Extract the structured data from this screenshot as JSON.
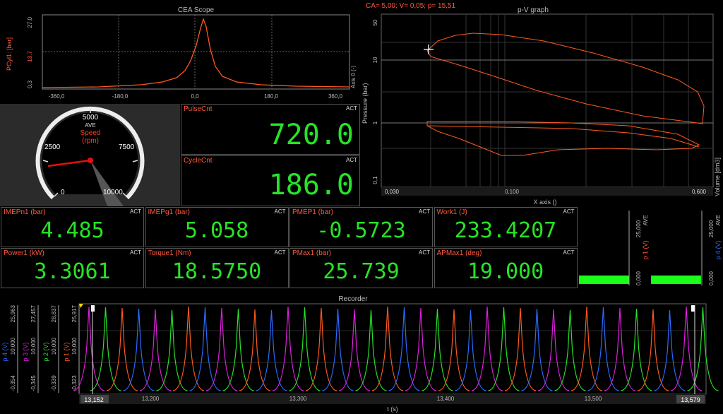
{
  "scope": {
    "title": "CEA Scope",
    "ylabel": "PCyl1: [bar]",
    "y_ticks": [
      "27,0",
      "13,7",
      "0,3"
    ],
    "x_ticks": [
      "-360,0",
      "-180,0",
      "0,0",
      "180,0",
      "360,0"
    ],
    "right_axis_label": "Axis 0 (-)"
  },
  "gauge": {
    "value_rpm": 750,
    "mode": "AVE",
    "label": "Speed",
    "unit": "(rpm)",
    "ticks": [
      "0",
      "2500",
      "5000",
      "7500",
      "10000"
    ]
  },
  "pv": {
    "title": "p-V graph",
    "cursor_readout": "CA= 5,00; V= 0,05; p= 15,51",
    "ylabel": "Pressure (bar)",
    "y_ticks": [
      "50",
      "10",
      "1",
      "0,1"
    ],
    "x_ticks": [
      "0,030",
      "0,100",
      "0,600"
    ],
    "xlabel": "X axis ()",
    "right_label": "Volume [dm3]"
  },
  "big_panels": [
    {
      "label": "PulseCnt",
      "tag": "ACT",
      "value": "720.0"
    },
    {
      "label": "CycleCnt",
      "tag": "ACT",
      "value": "186.0"
    }
  ],
  "digital_panels": [
    {
      "label": "IMEPn1 (bar)",
      "tag": "ACT",
      "value": "4.485"
    },
    {
      "label": "IMEPg1 (bar)",
      "tag": "ACT",
      "value": "5.058"
    },
    {
      "label": "PMEP1 (bar)",
      "tag": "ACT",
      "value": "-0.5723"
    },
    {
      "label": "Work1 (J)",
      "tag": "ACT",
      "value": "233.4207"
    },
    {
      "label": "Power1 (kW)",
      "tag": "ACT",
      "value": "3.3061"
    },
    {
      "label": "Torque1 (Nm)",
      "tag": "ACT",
      "value": "18.5750"
    },
    {
      "label": "PMax1 (bar)",
      "tag": "ACT",
      "value": "25.739"
    },
    {
      "label": "APMax1 (deg)",
      "tag": "ACT",
      "value": "19.000"
    }
  ],
  "bar_meters": [
    {
      "channel": "p 1 (V)",
      "mode": "AVE",
      "max": "25,000",
      "min": "0,000",
      "fraction": 0.06
    },
    {
      "channel": "p 4 (V)",
      "mode": "AVE",
      "max": "25,000",
      "min": "0,000",
      "fraction": 0.06
    }
  ],
  "recorder": {
    "title": "Recorder",
    "xlabel": "t (s)",
    "x_ticks": [
      "13,200",
      "13,300",
      "13,400",
      "13,500"
    ],
    "x_start": "13,152",
    "x_end": "13,579",
    "axes": [
      {
        "channel": "p 4 (V)",
        "max": "25,963",
        "mid": "10,000",
        "min": "-0,354",
        "color": "#2a6cff"
      },
      {
        "channel": "p 3 (V)",
        "max": "27,457",
        "mid": "10,000",
        "min": "-0,345",
        "color": "#e020e0"
      },
      {
        "channel": "p 2 (V)",
        "max": "28,837",
        "mid": "10,000",
        "min": "-0,339",
        "color": "#27e327"
      },
      {
        "channel": "p 1 (V)",
        "max": "25,917",
        "mid": "10,000",
        "min": "-0,323",
        "color": "#ff5a1f"
      }
    ]
  },
  "colors": {
    "accent_red": "#ff5a3c",
    "value_green": "#27e327",
    "bar_green": "#1aff1a"
  }
}
